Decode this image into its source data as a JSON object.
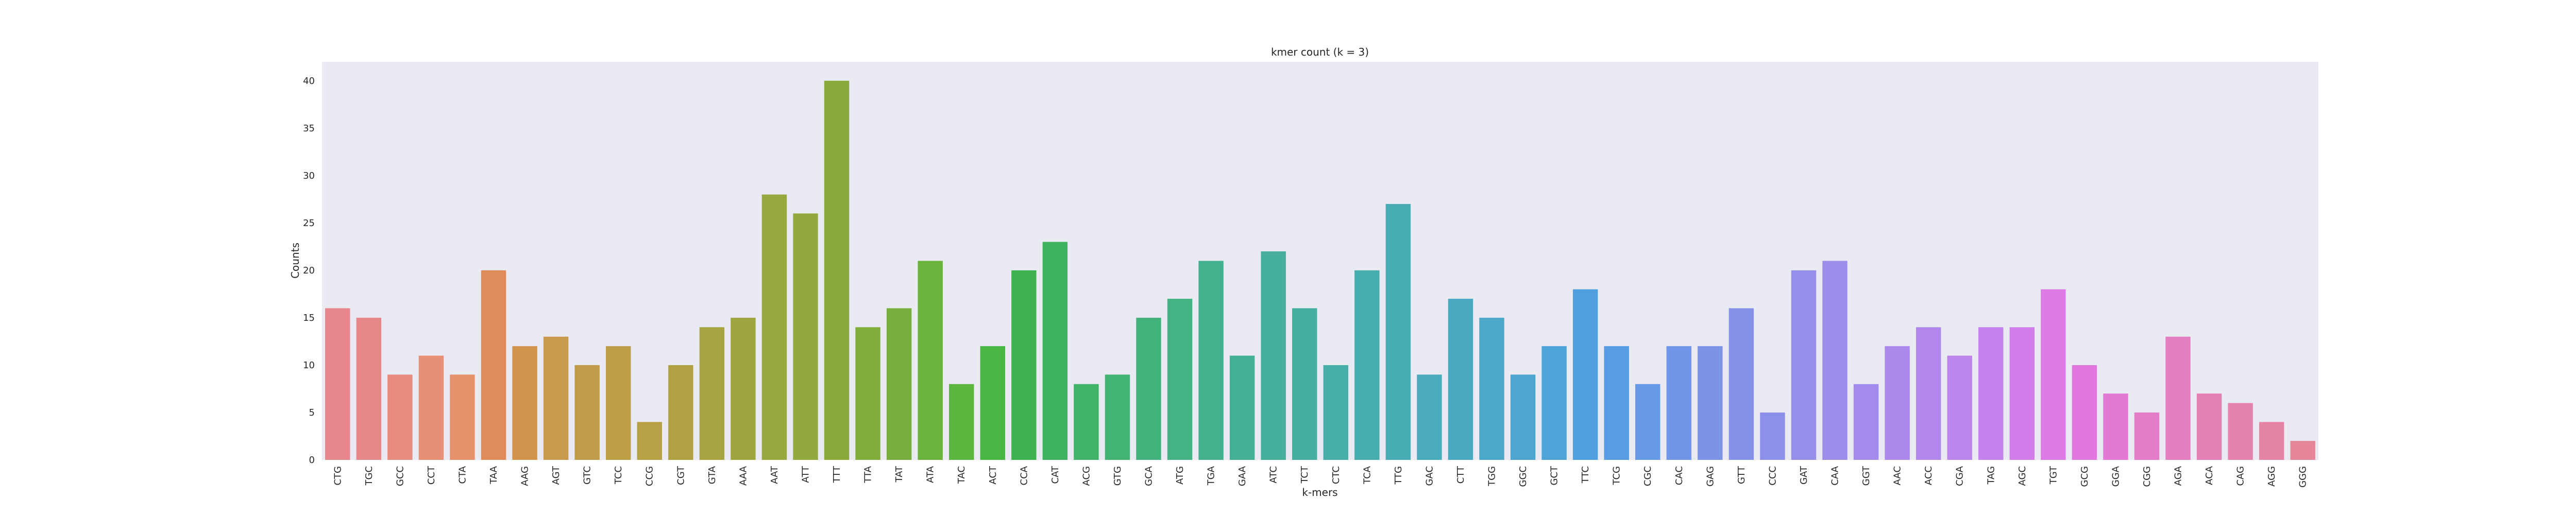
{
  "chart_data": {
    "type": "bar",
    "title": "kmer count (k = 3)",
    "xlabel": "k-mers",
    "ylabel": "Counts",
    "ylim": [
      0,
      42
    ],
    "yticks": [
      0,
      5,
      10,
      15,
      20,
      25,
      30,
      35,
      40
    ],
    "grid": false,
    "legend": "none",
    "background": "#eaeaf2",
    "categories": [
      "CTG",
      "TGC",
      "GCC",
      "CCT",
      "CTA",
      "TAA",
      "AAG",
      "AGT",
      "GTC",
      "TCC",
      "CCG",
      "CGT",
      "GTA",
      "AAA",
      "AAT",
      "ATT",
      "TTT",
      "TTA",
      "TAT",
      "ATA",
      "TAC",
      "ACT",
      "CCA",
      "CAT",
      "ACG",
      "GTG",
      "GCA",
      "ATG",
      "TGA",
      "GAA",
      "ATC",
      "TCT",
      "CTC",
      "TCA",
      "TTG",
      "GAC",
      "CTT",
      "TGG",
      "GGC",
      "GCT",
      "TTC",
      "TCG",
      "CGC",
      "CAC",
      "GAG",
      "GTT",
      "CCC",
      "GAT",
      "CAA",
      "GGT",
      "AAC",
      "ACC",
      "CGA",
      "TAG",
      "AGC",
      "TGT",
      "GCG",
      "GGA",
      "CGG",
      "AGA",
      "ACA",
      "CAG",
      "AGG",
      "GGG"
    ],
    "values": [
      16,
      15,
      9,
      11,
      9,
      20,
      12,
      13,
      10,
      12,
      4,
      10,
      14,
      15,
      28,
      26,
      40,
      14,
      16,
      21,
      8,
      12,
      20,
      23,
      8,
      9,
      15,
      17,
      21,
      11,
      22,
      16,
      10,
      20,
      27,
      9,
      17,
      15,
      9,
      12,
      18,
      12,
      8,
      12,
      12,
      16,
      5,
      20,
      21,
      8,
      12,
      14,
      11,
      14,
      14,
      18,
      10,
      7,
      5,
      13,
      7,
      6,
      4,
      2
    ],
    "colors": [
      "#e8868d",
      "#e8878a",
      "#e98b7f",
      "#e88f77",
      "#e7926d",
      "#e08b5a",
      "#d2934f",
      "#c99a4b",
      "#c19c48",
      "#bd9e47",
      "#b8a046",
      "#b0a243",
      "#a8a441",
      "#a0a63f",
      "#98a73e",
      "#91a93d",
      "#8aab3c",
      "#81ad3c",
      "#78af3c",
      "#6cb33c",
      "#5cb53e",
      "#48b643",
      "#3db24f",
      "#3eb25c",
      "#3fb368",
      "#41b373",
      "#42b27d",
      "#43b285",
      "#43b18d",
      "#44b094",
      "#45af9b",
      "#46aea1",
      "#46aea7",
      "#47adad",
      "#48acb4",
      "#49abbb",
      "#4aa9c1",
      "#4ba8c8",
      "#4ca6cf",
      "#4ea3d7",
      "#50a0df",
      "#579ce4",
      "#6699e6",
      "#7296e7",
      "#7c94e8",
      "#8592e9",
      "#8d90ea",
      "#958fea",
      "#9c8dea",
      "#a38beb",
      "#aa89eb",
      "#b287ec",
      "#bb85ec",
      "#c582ec",
      "#d17eea",
      "#dc7ae6",
      "#e178df",
      "#e27ad3",
      "#e37cc9",
      "#e37ec0",
      "#e480b6",
      "#e582ad",
      "#e684a3",
      "#e78698"
    ]
  }
}
